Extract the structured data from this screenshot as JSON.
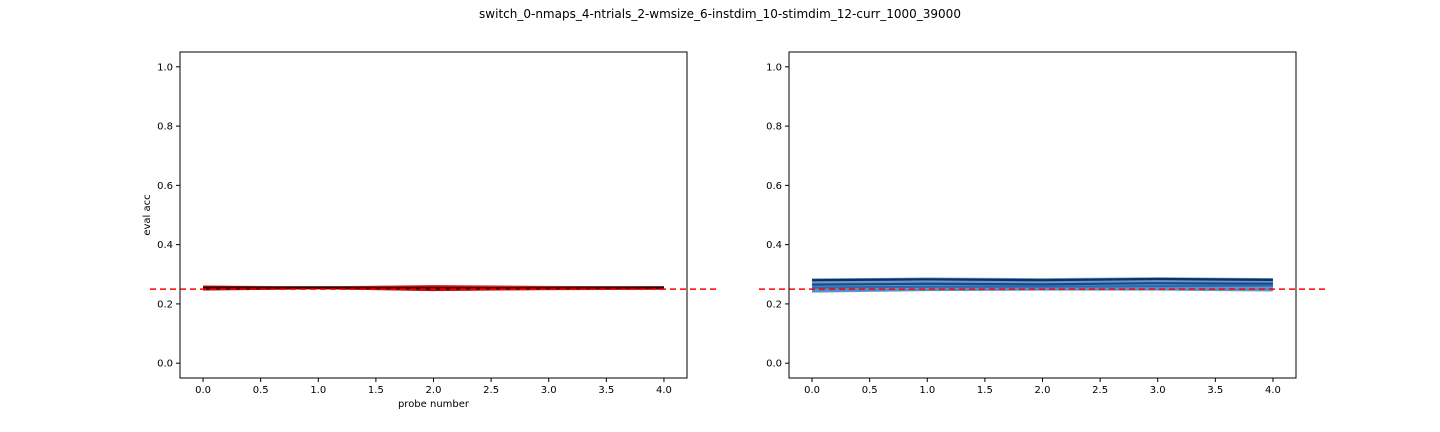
{
  "figure": {
    "title": "switch_0-nmaps_4-ntrials_2-wmsize_6-instdim_10-stimdim_12-curr_1000_39000"
  },
  "chart_data": [
    {
      "type": "line",
      "title": "",
      "xlabel": "probe number",
      "ylabel": "eval acc",
      "xlim": [
        -0.2,
        4.2
      ],
      "ylim": [
        -0.05,
        1.05
      ],
      "xticks": [
        "0.0",
        "0.5",
        "1.0",
        "1.5",
        "2.0",
        "2.5",
        "3.0",
        "3.5",
        "4.0"
      ],
      "yticks": [
        "0.0",
        "0.2",
        "0.4",
        "0.6",
        "0.8",
        "1.0"
      ],
      "grid": false,
      "reference_line": {
        "y": 0.25,
        "style": "dashed",
        "color": "#ff0000"
      },
      "x": [
        0,
        1,
        2,
        3,
        4
      ],
      "series": [
        {
          "values": [
            0.252,
            0.255,
            0.259,
            0.256,
            0.255
          ],
          "color": "#e31a1c"
        },
        {
          "values": [
            0.258,
            0.253,
            0.247,
            0.251,
            0.254
          ],
          "color": "#b10f12"
        },
        {
          "values": [
            0.249,
            0.253,
            0.255,
            0.252,
            0.252
          ],
          "color": "#8b0000"
        },
        {
          "values": [
            0.254,
            0.256,
            0.252,
            0.254,
            0.256
          ],
          "color": "#3a0000"
        }
      ],
      "band": {
        "lower": [
          0.246,
          0.25,
          0.244,
          0.246,
          0.248
        ],
        "upper": [
          0.262,
          0.259,
          0.264,
          0.261,
          0.259
        ],
        "color": "#d7191c"
      }
    },
    {
      "type": "line",
      "title": "",
      "xlabel": "",
      "ylabel": "",
      "xlim": [
        -0.2,
        4.2
      ],
      "ylim": [
        -0.05,
        1.05
      ],
      "xticks": [
        "0.0",
        "0.5",
        "1.0",
        "1.5",
        "2.0",
        "2.5",
        "3.0",
        "3.5",
        "4.0"
      ],
      "yticks": [
        "0.0",
        "0.2",
        "0.4",
        "0.6",
        "0.8",
        "1.0"
      ],
      "grid": false,
      "reference_line": {
        "y": 0.25,
        "style": "dashed",
        "color": "#ff0000"
      },
      "x": [
        0,
        1,
        2,
        3,
        4
      ],
      "series": [
        {
          "values": [
            0.28,
            0.283,
            0.28,
            0.284,
            0.281
          ],
          "color": "#08306b"
        },
        {
          "values": [
            0.265,
            0.268,
            0.266,
            0.27,
            0.268
          ],
          "color": "#174a8b"
        },
        {
          "values": [
            0.255,
            0.258,
            0.258,
            0.26,
            0.262
          ],
          "color": "#2c6bb0"
        },
        {
          "values": [
            0.245,
            0.249,
            0.251,
            0.252,
            0.25
          ],
          "color": "#4f8cc9"
        }
      ],
      "band": {
        "lower": [
          0.238,
          0.243,
          0.245,
          0.245,
          0.242
        ],
        "upper": [
          0.286,
          0.289,
          0.287,
          0.29,
          0.287
        ],
        "color": "#3b73b0"
      }
    }
  ]
}
